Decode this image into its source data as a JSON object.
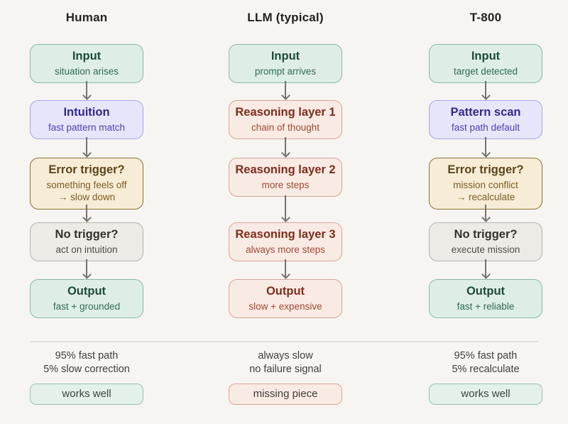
{
  "palette": {
    "background": "#f6f5f2",
    "arrow": "#737371",
    "divider": "#e3e1db",
    "heading_text": "#23221e",
    "summary_text": "#403e38",
    "schemes": {
      "green": {
        "bg": "#deeee6",
        "border": "#8ab9a2",
        "title": "#1d4b39",
        "sub": "#2f6b55"
      },
      "purple": {
        "bg": "#e7e5f9",
        "border": "#aaa4e2",
        "title": "#32298f",
        "sub": "#4c42b5"
      },
      "amber": {
        "bg": "#f7ecd6",
        "border": "#8f7034",
        "title": "#5c451b",
        "sub": "#7d5d24"
      },
      "gray": {
        "bg": "#ecebe6",
        "border": "#b5b3aa",
        "title": "#34312a",
        "sub": "#504d44"
      },
      "pink": {
        "bg": "#faeae4",
        "border": "#d8a597",
        "title": "#7d2d1b",
        "sub": "#9f4a33"
      }
    }
  },
  "columns": [
    {
      "title": "Human",
      "boxes": [
        {
          "title": "Input",
          "subtitle": "situation arises",
          "scheme": "green"
        },
        {
          "title": "Intuition",
          "subtitle": "fast pattern match",
          "scheme": "purple"
        },
        {
          "title": "Error trigger?",
          "subtitle": "something feels off\n→ slow down",
          "scheme": "amber"
        },
        {
          "title": "No trigger?",
          "subtitle": "act on intuition",
          "scheme": "gray"
        },
        {
          "title": "Output",
          "subtitle": "fast + grounded",
          "scheme": "green"
        }
      ],
      "summary_lines": [
        "95% fast path",
        "5% slow correction"
      ],
      "badge": {
        "label": "works well",
        "scheme": "green"
      }
    },
    {
      "title": "LLM (typical)",
      "boxes": [
        {
          "title": "Input",
          "subtitle": "prompt arrives",
          "scheme": "green"
        },
        {
          "title": "Reasoning layer 1",
          "subtitle": "chain of thought",
          "scheme": "pink"
        },
        {
          "title": "Reasoning layer 2",
          "subtitle": "more steps",
          "scheme": "pink"
        },
        {
          "title": "Reasoning layer 3",
          "subtitle": "always more steps",
          "scheme": "pink"
        },
        {
          "title": "Output",
          "subtitle": "slow + expensive",
          "scheme": "pink"
        }
      ],
      "summary_lines": [
        "always slow",
        "no failure signal"
      ],
      "badge": {
        "label": "missing piece",
        "scheme": "pink"
      }
    },
    {
      "title": "T-800",
      "boxes": [
        {
          "title": "Input",
          "subtitle": "target detected",
          "scheme": "green"
        },
        {
          "title": "Pattern scan",
          "subtitle": "fast path default",
          "scheme": "purple"
        },
        {
          "title": "Error trigger?",
          "subtitle": "mission conflict\n→ recalculate",
          "scheme": "amber"
        },
        {
          "title": "No trigger?",
          "subtitle": "execute mission",
          "scheme": "gray"
        },
        {
          "title": "Output",
          "subtitle": "fast + reliable",
          "scheme": "green"
        }
      ],
      "summary_lines": [
        "95% fast path",
        "5% recalculate"
      ],
      "badge": {
        "label": "works well",
        "scheme": "green"
      }
    }
  ]
}
